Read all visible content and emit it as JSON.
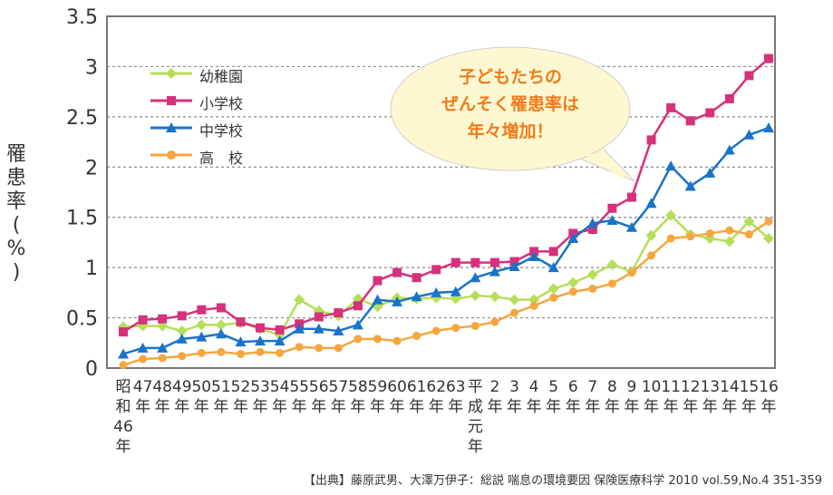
{
  "chart_data": {
    "type": "line",
    "ylabel": "罹患率(%)",
    "ylim": [
      0,
      3.5
    ],
    "yticks": [
      "0",
      "0.5",
      "1",
      "1.5",
      "2",
      "2.5",
      "3",
      "3.5"
    ],
    "grid": true,
    "legend_position": "top-left",
    "categories": [
      "昭和46年",
      "47年",
      "48年",
      "49年",
      "50年",
      "51年",
      "52年",
      "53年",
      "54年",
      "55年",
      "56年",
      "57年",
      "58年",
      "59年",
      "60年",
      "61年",
      "62年",
      "63年",
      "平成元年",
      "2年",
      "3年",
      "4年",
      "5年",
      "6年",
      "7年",
      "8年",
      "9年",
      "10年",
      "11年",
      "12年",
      "13年",
      "14年",
      "15年",
      "16年"
    ],
    "tick_labels": [
      [
        "昭",
        "和",
        "46",
        "年"
      ],
      [
        "47",
        "年"
      ],
      [
        "48",
        "年"
      ],
      [
        "49",
        "年"
      ],
      [
        "50",
        "年"
      ],
      [
        "51",
        "年"
      ],
      [
        "52",
        "年"
      ],
      [
        "53",
        "年"
      ],
      [
        "54",
        "年"
      ],
      [
        "55",
        "年"
      ],
      [
        "56",
        "年"
      ],
      [
        "57",
        "年"
      ],
      [
        "58",
        "年"
      ],
      [
        "59",
        "年"
      ],
      [
        "60",
        "年"
      ],
      [
        "61",
        "年"
      ],
      [
        "62",
        "年"
      ],
      [
        "63",
        "年"
      ],
      [
        "平",
        "成",
        "元",
        "年"
      ],
      [
        "2",
        "年"
      ],
      [
        "3",
        "年"
      ],
      [
        "4",
        "年"
      ],
      [
        "5",
        "年"
      ],
      [
        "6",
        "年"
      ],
      [
        "7",
        "年"
      ],
      [
        "8",
        "年"
      ],
      [
        "9",
        "年"
      ],
      [
        "10",
        "年"
      ],
      [
        "11",
        "年"
      ],
      [
        "12",
        "年"
      ],
      [
        "13",
        "年"
      ],
      [
        "14",
        "年"
      ],
      [
        "15",
        "年"
      ],
      [
        "16",
        "年"
      ]
    ],
    "series": [
      {
        "name": "幼稚園",
        "color": "#b5df5a",
        "marker": "diamond",
        "values": [
          0.41,
          0.42,
          0.42,
          0.37,
          0.43,
          0.43,
          0.45,
          0.39,
          0.33,
          0.68,
          0.57,
          0.52,
          0.69,
          0.61,
          0.7,
          0.69,
          0.7,
          0.69,
          0.72,
          0.71,
          0.68,
          0.68,
          0.79,
          0.85,
          0.93,
          1.03,
          0.96,
          1.32,
          1.52,
          1.33,
          1.29,
          1.26,
          1.46,
          1.29
        ]
      },
      {
        "name": "小学校",
        "color": "#d6317a",
        "marker": "square",
        "values": [
          0.36,
          0.48,
          0.49,
          0.52,
          0.58,
          0.6,
          0.46,
          0.4,
          0.38,
          0.44,
          0.51,
          0.55,
          0.62,
          0.87,
          0.95,
          0.9,
          0.98,
          1.05,
          1.05,
          1.05,
          1.06,
          1.16,
          1.16,
          1.34,
          1.38,
          1.59,
          1.7,
          2.27,
          2.59,
          2.46,
          2.54,
          2.68,
          2.91,
          3.08
        ]
      },
      {
        "name": "中学校",
        "color": "#1a73c9",
        "marker": "triangle",
        "values": [
          0.14,
          0.2,
          0.2,
          0.29,
          0.31,
          0.34,
          0.26,
          0.27,
          0.27,
          0.39,
          0.39,
          0.37,
          0.43,
          0.68,
          0.66,
          0.71,
          0.75,
          0.76,
          0.9,
          0.96,
          1.01,
          1.11,
          1.0,
          1.29,
          1.44,
          1.47,
          1.4,
          1.64,
          2.01,
          1.81,
          1.94,
          2.17,
          2.32,
          2.39
        ]
      },
      {
        "name": "高　校",
        "color": "#f5a640",
        "marker": "circle",
        "values": [
          0.03,
          0.09,
          0.1,
          0.12,
          0.15,
          0.16,
          0.14,
          0.16,
          0.15,
          0.21,
          0.2,
          0.2,
          0.29,
          0.29,
          0.27,
          0.32,
          0.37,
          0.4,
          0.42,
          0.46,
          0.55,
          0.62,
          0.7,
          0.76,
          0.79,
          0.84,
          0.95,
          1.12,
          1.29,
          1.31,
          1.34,
          1.37,
          1.33,
          1.46
        ]
      }
    ],
    "annotation": [
      "子どもたちの",
      "ぜんそく罹患率は",
      "年々増加！"
    ]
  },
  "ylabel_chars": [
    "罹",
    "患",
    "率",
    "(",
    "%",
    ")"
  ],
  "source": "【出典】藤原武男、大澤万伊子：総説 喘息の環境要因 保険医療科学 2010 vol.59,No.4 351-359"
}
